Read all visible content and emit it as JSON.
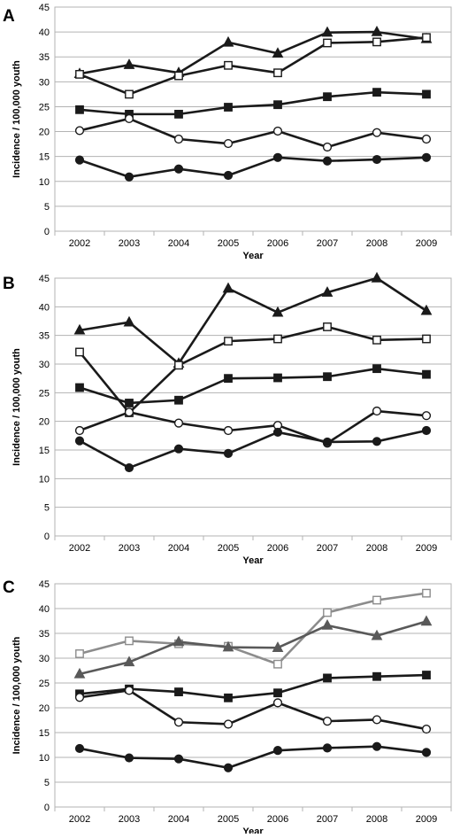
{
  "chart_data": [
    {
      "type": "line",
      "panel_label": "A",
      "xlabel": "Year",
      "ylabel": "Incidence / 100,000 youth",
      "ylim": [
        0,
        45
      ],
      "yticks": [
        "0",
        "5",
        "10",
        "15",
        "20",
        "25",
        "30",
        "35",
        "40",
        "45"
      ],
      "categories": [
        "2002",
        "2003",
        "2004",
        "2005",
        "2006",
        "2007",
        "2008",
        "2009"
      ],
      "grid": true,
      "series": [
        {
          "marker": "triangle-filled",
          "color": "#1a1a1a",
          "values": [
            31.6,
            33.4,
            31.8,
            37.9,
            35.7,
            39.9,
            40.0,
            38.6
          ]
        },
        {
          "marker": "square-open",
          "color": "#1a1a1a",
          "values": [
            31.5,
            27.5,
            31.2,
            33.3,
            31.8,
            37.8,
            38.0,
            38.9
          ]
        },
        {
          "marker": "square-filled",
          "color": "#1a1a1a",
          "values": [
            24.4,
            23.5,
            23.5,
            24.9,
            25.4,
            27.0,
            27.9,
            27.5
          ]
        },
        {
          "marker": "circle-open",
          "color": "#1a1a1a",
          "values": [
            20.2,
            22.6,
            18.5,
            17.6,
            20.1,
            16.9,
            19.8,
            18.5
          ]
        },
        {
          "marker": "circle-filled",
          "color": "#1a1a1a",
          "values": [
            14.3,
            10.9,
            12.5,
            11.2,
            14.8,
            14.1,
            14.4,
            14.8
          ]
        }
      ]
    },
    {
      "type": "line",
      "panel_label": "B",
      "xlabel": "Year",
      "ylabel": "Incidence / 100,000 youth",
      "ylim": [
        0,
        45
      ],
      "yticks": [
        "0",
        "5",
        "10",
        "15",
        "20",
        "25",
        "30",
        "35",
        "40",
        "45"
      ],
      "categories": [
        "2002",
        "2003",
        "2004",
        "2005",
        "2006",
        "2007",
        "2008",
        "2009"
      ],
      "grid": true,
      "series": [
        {
          "marker": "triangle-filled",
          "color": "#1a1a1a",
          "values": [
            35.9,
            37.3,
            30.1,
            43.2,
            39.0,
            42.5,
            45.0,
            39.3
          ]
        },
        {
          "marker": "square-open",
          "color": "#1a1a1a",
          "values": [
            32.1,
            21.5,
            29.8,
            34.0,
            34.4,
            36.5,
            34.2,
            34.4
          ]
        },
        {
          "marker": "square-filled",
          "color": "#1a1a1a",
          "values": [
            25.9,
            23.2,
            23.7,
            27.5,
            27.6,
            27.8,
            29.2,
            28.2
          ]
        },
        {
          "marker": "circle-open",
          "color": "#1a1a1a",
          "values": [
            18.4,
            21.6,
            19.7,
            18.4,
            19.3,
            16.2,
            21.8,
            21.0
          ]
        },
        {
          "marker": "circle-filled",
          "color": "#1a1a1a",
          "values": [
            16.6,
            11.9,
            15.2,
            14.4,
            18.1,
            16.4,
            16.5,
            18.4
          ]
        }
      ]
    },
    {
      "type": "line",
      "panel_label": "C",
      "xlabel": "Year",
      "ylabel": "Incidence / 100,000 youth",
      "ylim": [
        0,
        45
      ],
      "yticks": [
        "0",
        "5",
        "10",
        "15",
        "20",
        "25",
        "30",
        "35",
        "40",
        "45"
      ],
      "categories": [
        "2002",
        "2003",
        "2004",
        "2005",
        "2006",
        "2007",
        "2008",
        "2009"
      ],
      "grid": true,
      "series": [
        {
          "marker": "square-open",
          "color": "#8c8c8c",
          "values": [
            30.9,
            33.5,
            32.9,
            32.4,
            28.8,
            39.2,
            41.7,
            43.1
          ]
        },
        {
          "marker": "triangle-filled",
          "color": "#595959",
          "values": [
            26.8,
            29.2,
            33.3,
            32.2,
            32.1,
            36.6,
            34.5,
            37.4
          ]
        },
        {
          "marker": "square-filled",
          "color": "#1a1a1a",
          "values": [
            22.8,
            23.8,
            23.2,
            22.0,
            23.0,
            26.0,
            26.3,
            26.6
          ]
        },
        {
          "marker": "circle-open",
          "color": "#1a1a1a",
          "values": [
            22.1,
            23.5,
            17.1,
            16.7,
            21.0,
            17.3,
            17.6,
            15.7
          ]
        },
        {
          "marker": "circle-filled",
          "color": "#1a1a1a",
          "values": [
            11.8,
            9.9,
            9.7,
            7.9,
            11.4,
            11.9,
            12.2,
            11.0
          ]
        }
      ]
    }
  ]
}
